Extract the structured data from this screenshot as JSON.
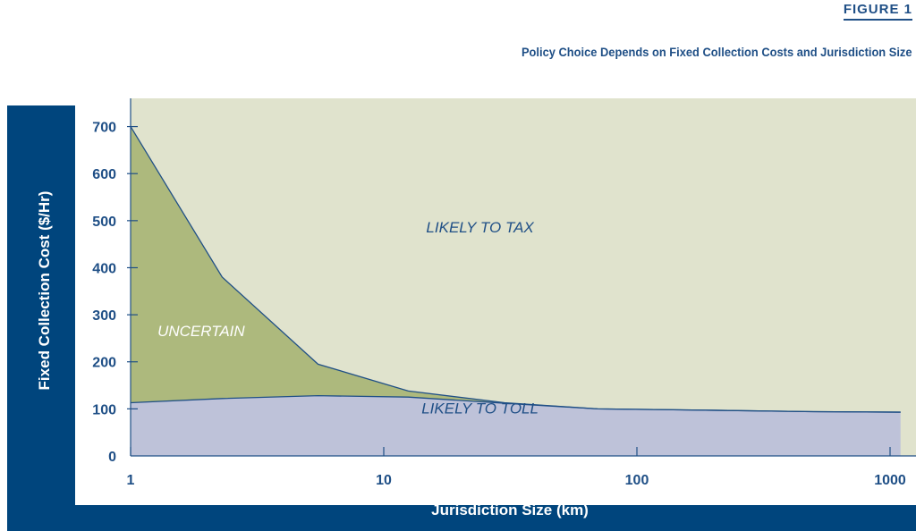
{
  "figure_label": "FIGURE 1",
  "chart_data": {
    "type": "area",
    "title": "Policy Choice Depends on Fixed Collection Costs and Jurisdiction Size",
    "xlabel": "Jurisdiction Size (km)",
    "ylabel": "Fixed Collection Cost ($/Hr)",
    "x_scale": "log",
    "xlim": [
      1,
      1100
    ],
    "ylim": [
      0,
      760
    ],
    "x_ticks": [
      1,
      10,
      100,
      1000
    ],
    "x_tick_labels": [
      "1",
      "10",
      "100",
      "1000"
    ],
    "y_ticks": [
      0,
      100,
      200,
      300,
      400,
      500,
      600,
      700
    ],
    "y_tick_labels": [
      "0",
      "100",
      "200",
      "300",
      "400",
      "500",
      "600",
      "700"
    ],
    "grid": false,
    "series": [
      {
        "x": [
          1,
          2.3,
          5.5,
          12.5,
          30,
          70,
          200,
          500,
          1100
        ],
        "values": [
          700,
          380,
          195,
          138,
          113,
          100,
          97,
          94,
          93
        ]
      },
      {
        "x": [
          1,
          2.3,
          5.5,
          12.5,
          30,
          70,
          200,
          500,
          1100
        ],
        "values": [
          113,
          122,
          128,
          125,
          112,
          100,
          97,
          94,
          93
        ]
      }
    ],
    "regions": [
      {
        "label": "LIKELY TO TAX",
        "x": 24,
        "y": 475,
        "color": "#e0e3cd"
      },
      {
        "label": "UNCERTAIN",
        "x": 1.9,
        "y": 255,
        "color": "#adb97d"
      },
      {
        "label": "LIKELY TO TOLL",
        "x": 24,
        "y": 90,
        "color": "#bec2d9"
      }
    ],
    "colors": {
      "tax": "#e0e3cd",
      "uncertain": "#adb97d",
      "toll": "#bec2d9",
      "boundary": "#1f4f86",
      "frame": "#00457d",
      "text": "#1f4f86"
    }
  }
}
